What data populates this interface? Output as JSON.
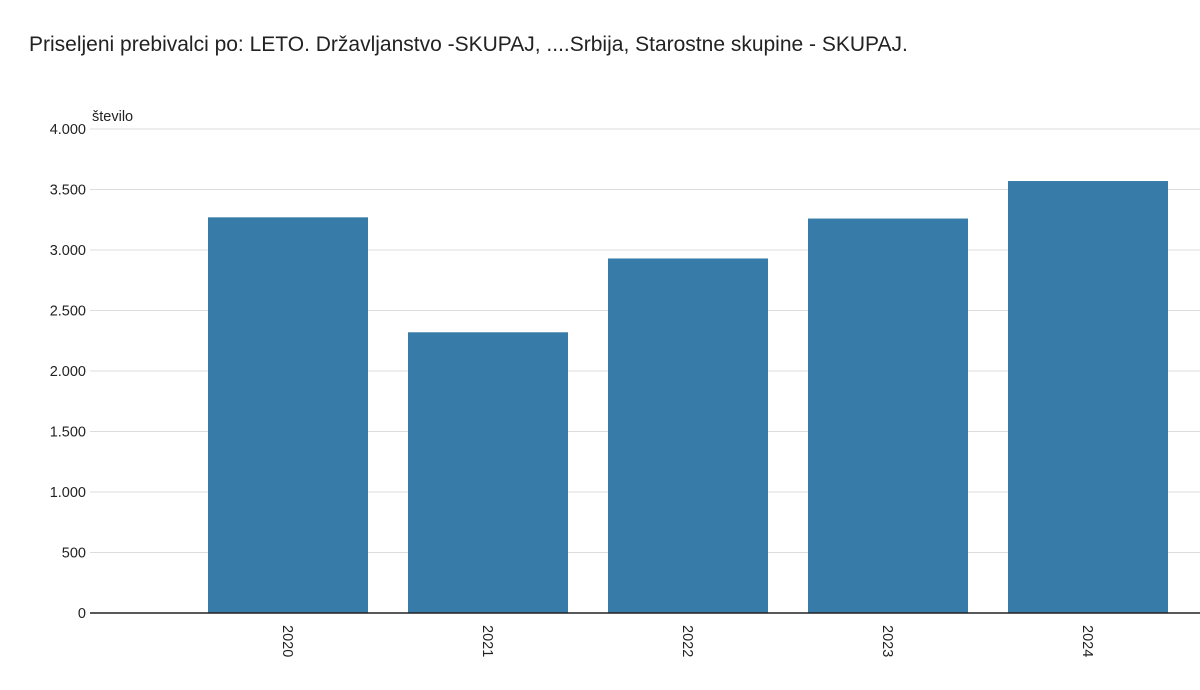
{
  "chart_data": {
    "type": "bar",
    "title": "Priseljeni prebivalci po: LETO. Državljanstvo -SKUPAJ, ....Srbija, Starostne skupine - SKUPAJ.",
    "ylabel": "število",
    "xlabel": "",
    "categories": [
      "2020",
      "2021",
      "2022",
      "2023",
      "2024"
    ],
    "values": [
      3270,
      2320,
      2930,
      3260,
      3570
    ],
    "ylim": [
      0,
      4000
    ],
    "yticks": [
      0,
      500,
      1000,
      1500,
      2000,
      2500,
      3000,
      3500,
      4000
    ],
    "ytick_labels": [
      "0",
      "500",
      "1.000",
      "1.500",
      "2.000",
      "2.500",
      "3.000",
      "3.500",
      "4.000"
    ],
    "x_tick_rotation": "vertical",
    "grid": true,
    "legend": "none",
    "bar_color": "#377ca8",
    "grid_color": "#dddddd",
    "axis_color": "#222222"
  }
}
